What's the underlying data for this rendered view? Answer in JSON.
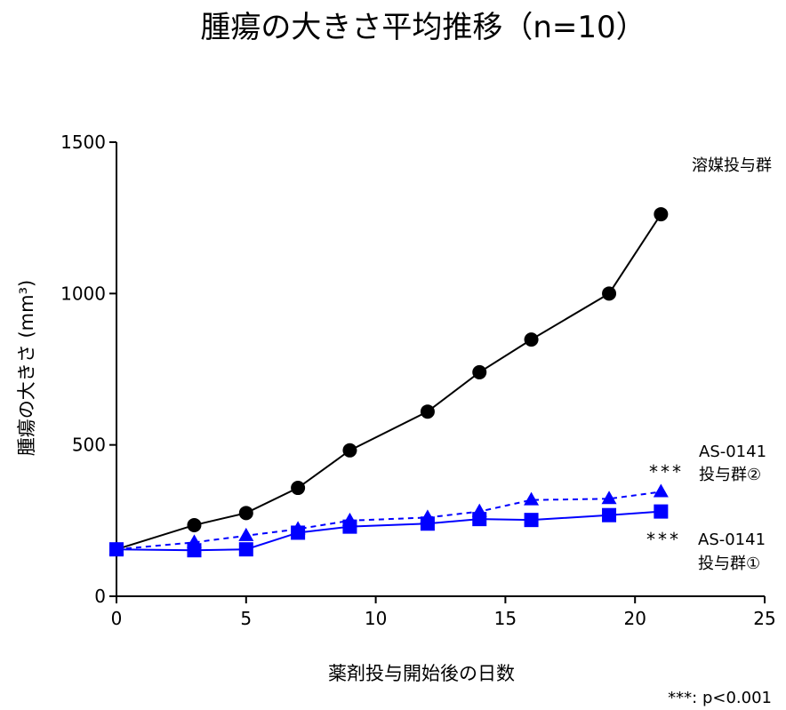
{
  "chart_data": {
    "type": "line",
    "title": "腫瘍の大きさ平均推移（n=10）",
    "xlabel": "薬剤投与開始後の日数",
    "ylabel": "腫瘍の大きさ (mm³)",
    "xlim": [
      0,
      25
    ],
    "ylim": [
      0,
      1500
    ],
    "xticks": [
      "0",
      "5",
      "10",
      "15",
      "20",
      "25"
    ],
    "yticks": [
      "0",
      "500",
      "1000",
      "1500"
    ],
    "grid": false,
    "series": [
      {
        "name": "溶媒投与群",
        "color": "#000000",
        "marker": "circle",
        "line_style": "solid",
        "x": [
          0,
          3,
          5,
          7,
          9,
          12,
          14,
          16,
          19,
          21
        ],
        "values": [
          155,
          235,
          275,
          358,
          482,
          610,
          740,
          848,
          1000,
          1262
        ]
      },
      {
        "name_line1": "AS-0141",
        "name_line2": "投与群②",
        "significance": "***",
        "color": "#0000ff",
        "marker": "triangle",
        "line_style": "dashed",
        "x": [
          0,
          3,
          5,
          7,
          9,
          12,
          14,
          16,
          19,
          21
        ],
        "values": [
          155,
          178,
          200,
          222,
          250,
          260,
          280,
          318,
          322,
          345
        ]
      },
      {
        "name_line1": "AS-0141",
        "name_line2": "投与群①",
        "significance": "***",
        "color": "#0000ff",
        "marker": "square",
        "line_style": "solid",
        "x": [
          0,
          3,
          5,
          7,
          9,
          12,
          14,
          16,
          19,
          21
        ],
        "values": [
          155,
          152,
          155,
          210,
          230,
          240,
          255,
          252,
          268,
          280
        ]
      }
    ],
    "footnote": "***: p<0.001"
  }
}
